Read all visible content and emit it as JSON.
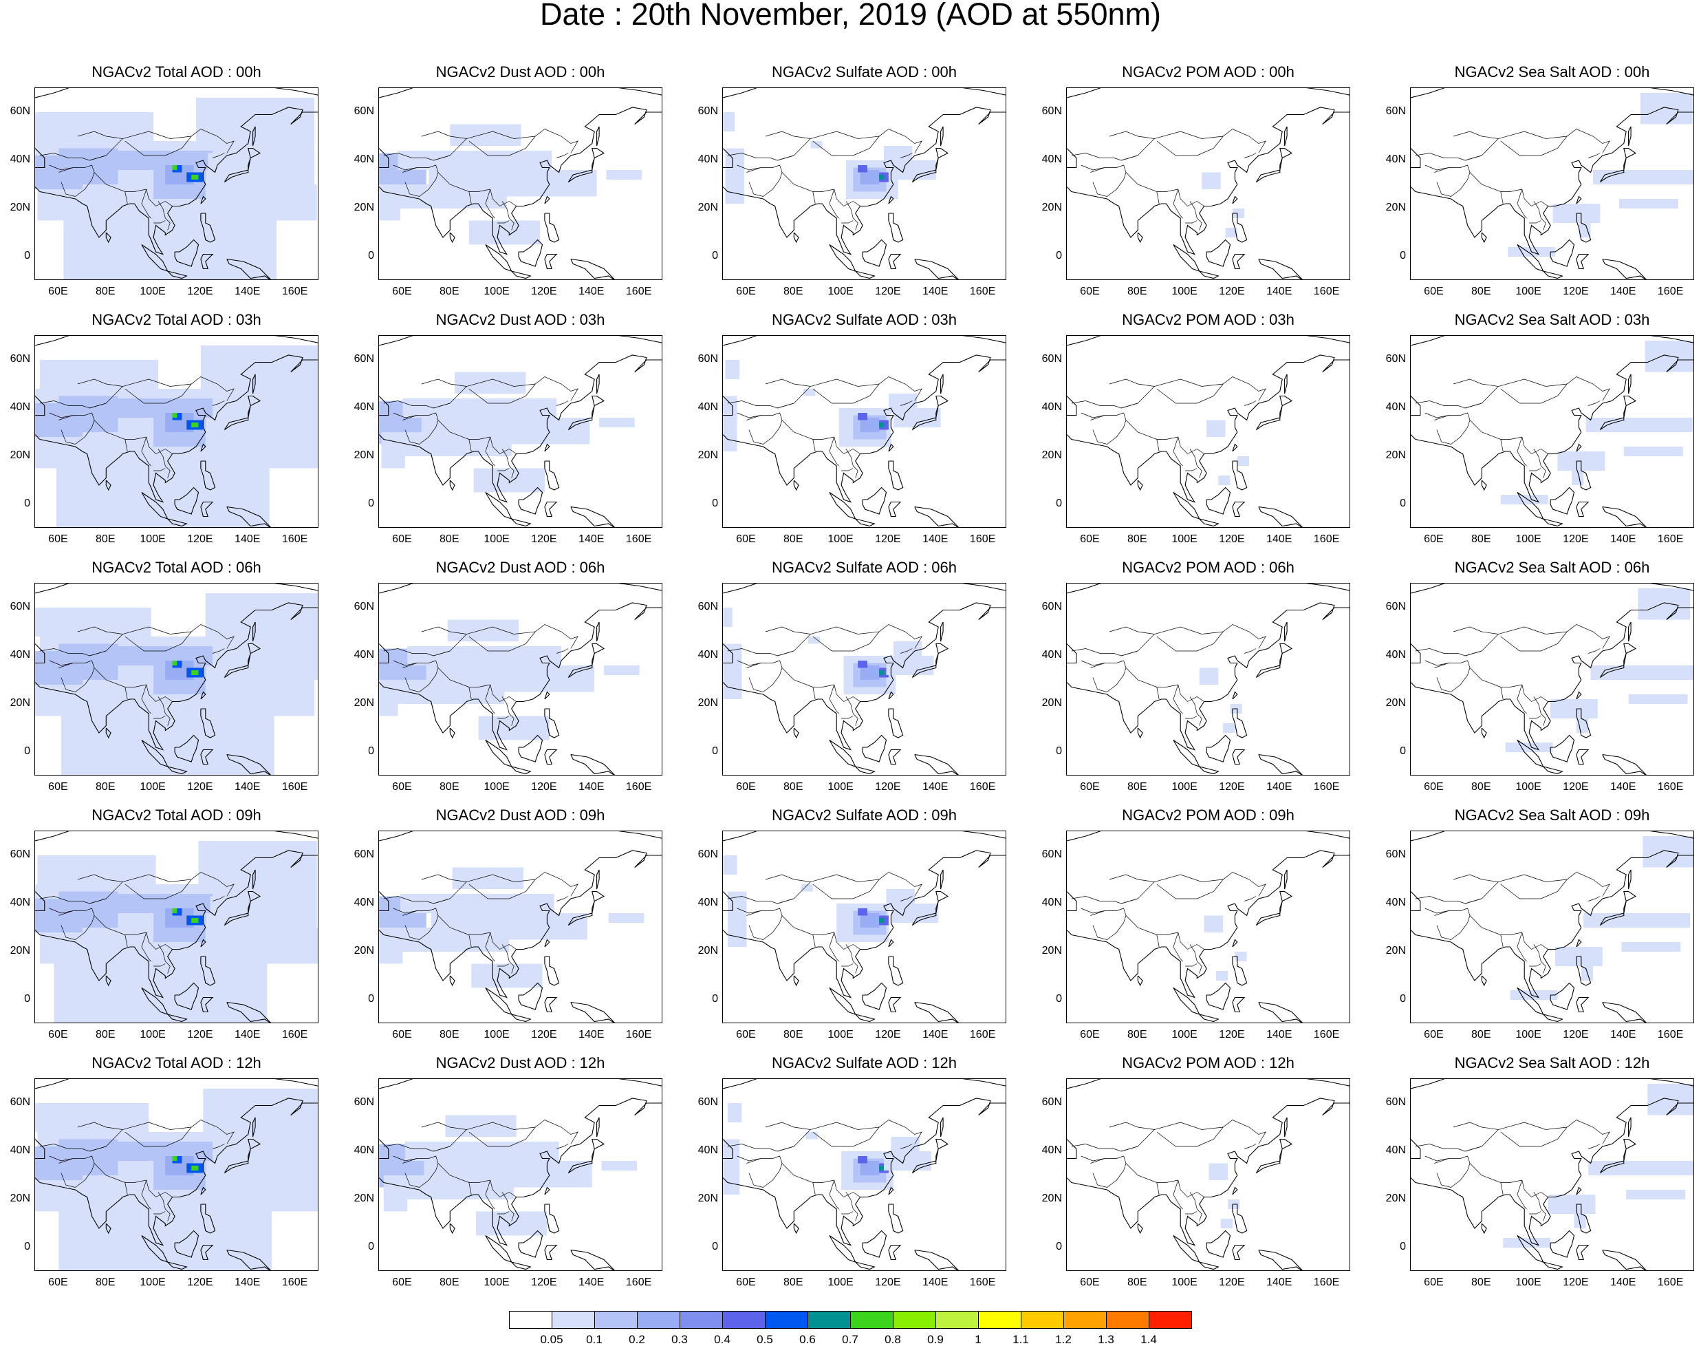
{
  "title": "Date : 20th November, 2019 (AOD at 550nm)",
  "chart_data": {
    "type": "heatmap",
    "title": "Date : 20th November, 2019 (AOD at 550nm)",
    "grid": {
      "rows": 5,
      "cols": 5
    },
    "panels": [
      [
        "NGACv2 Total AOD : 00h",
        "NGACv2 Dust AOD : 00h",
        "NGACv2 Sulfate AOD : 00h",
        "NGACv2 POM AOD : 00h",
        "NGACv2 Sea Salt AOD : 00h"
      ],
      [
        "NGACv2 Total AOD : 03h",
        "NGACv2 Dust AOD : 03h",
        "NGACv2 Sulfate AOD : 03h",
        "NGACv2 POM AOD : 03h",
        "NGACv2 Sea Salt AOD : 03h"
      ],
      [
        "NGACv2 Total AOD : 06h",
        "NGACv2 Dust AOD : 06h",
        "NGACv2 Sulfate AOD : 06h",
        "NGACv2 POM AOD : 06h",
        "NGACv2 Sea Salt AOD : 06h"
      ],
      [
        "NGACv2 Total AOD : 09h",
        "NGACv2 Dust AOD : 09h",
        "NGACv2 Sulfate AOD : 09h",
        "NGACv2 POM AOD : 09h",
        "NGACv2 Sea Salt  AOD : 09h"
      ],
      [
        "NGACv2 Total AOD  : 12h",
        "NGACv2 Dust AOD : 12h",
        "NGACv2 Sulfate AOD : 12h",
        "NGACv2 POM  AOD : 12h",
        "NGACv2 Sea Salt  AOD : 12h"
      ]
    ],
    "x_ticks": [
      "60E",
      "80E",
      "100E",
      "120E",
      "140E",
      "160E"
    ],
    "x_tick_values": [
      60,
      80,
      100,
      120,
      140,
      160
    ],
    "y_ticks": [
      "60N",
      "40N",
      "20N",
      "0"
    ],
    "y_tick_values": [
      60,
      40,
      20,
      0
    ],
    "xlim": [
      50,
      170
    ],
    "ylim": [
      -10,
      70
    ],
    "colorbar": {
      "labels": [
        "0.05",
        "0.1",
        "0.2",
        "0.3",
        "0.4",
        "0.5",
        "0.6",
        "0.7",
        "0.8",
        "0.9",
        "1",
        "1.1",
        "1.2",
        "1.3",
        "1.4"
      ],
      "colors": [
        "#ffffff",
        "#d7e0fb",
        "#b4c4f7",
        "#98adf4",
        "#7e8ff0",
        "#5d63ea",
        "#0057f0",
        "#009190",
        "#3bd31b",
        "#88ef00",
        "#bff23c",
        "#ffff00",
        "#ffcc00",
        "#ffa200",
        "#ff7b00",
        "#ff2000"
      ]
    },
    "annotations": "Total AOD mostly 0.1-0.3 over Asia with hotspots 0.5-0.9 over east China (~108E 37N and ~118E 33N); Dust 0.1-0.2 over central Asian belt ~40N; Sulfate 0.1-0.5 over east China; POM mostly <0.1; Sea Salt 0.1-0.2 near Philippines and NW Pacific."
  }
}
